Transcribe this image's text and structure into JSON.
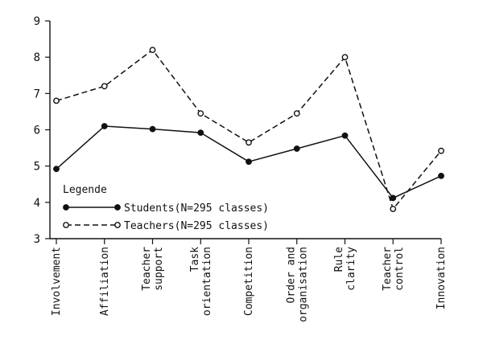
{
  "chart_data": {
    "type": "line",
    "categories": [
      [
        "Involvement"
      ],
      [
        "Affiliation"
      ],
      [
        "Teacher",
        "support"
      ],
      [
        "Task",
        "orientation"
      ],
      [
        "Competition"
      ],
      [
        "Order and",
        "organisation"
      ],
      [
        "Rule",
        "clarity"
      ],
      [
        "Teacher",
        "control"
      ],
      [
        "Innovation"
      ]
    ],
    "ylim": [
      3,
      9
    ],
    "yticks": [
      3,
      4,
      5,
      6,
      7,
      8,
      9
    ],
    "grid": false,
    "legend": {
      "title": "Legende",
      "position": "bottom-left"
    },
    "series": [
      {
        "name": "Students(N=295 classes)",
        "values": [
          4.92,
          6.1,
          6.02,
          5.92,
          5.12,
          5.48,
          5.84,
          4.12,
          4.73
        ],
        "line_style": "solid",
        "marker": "filled-circle",
        "color": "#111111"
      },
      {
        "name": "Teachers(N=295 classes)",
        "values": [
          6.8,
          7.2,
          8.2,
          6.45,
          5.65,
          6.45,
          8.0,
          3.82,
          5.42
        ],
        "line_style": "dashed",
        "marker": "open-circle",
        "color": "#111111"
      }
    ]
  }
}
